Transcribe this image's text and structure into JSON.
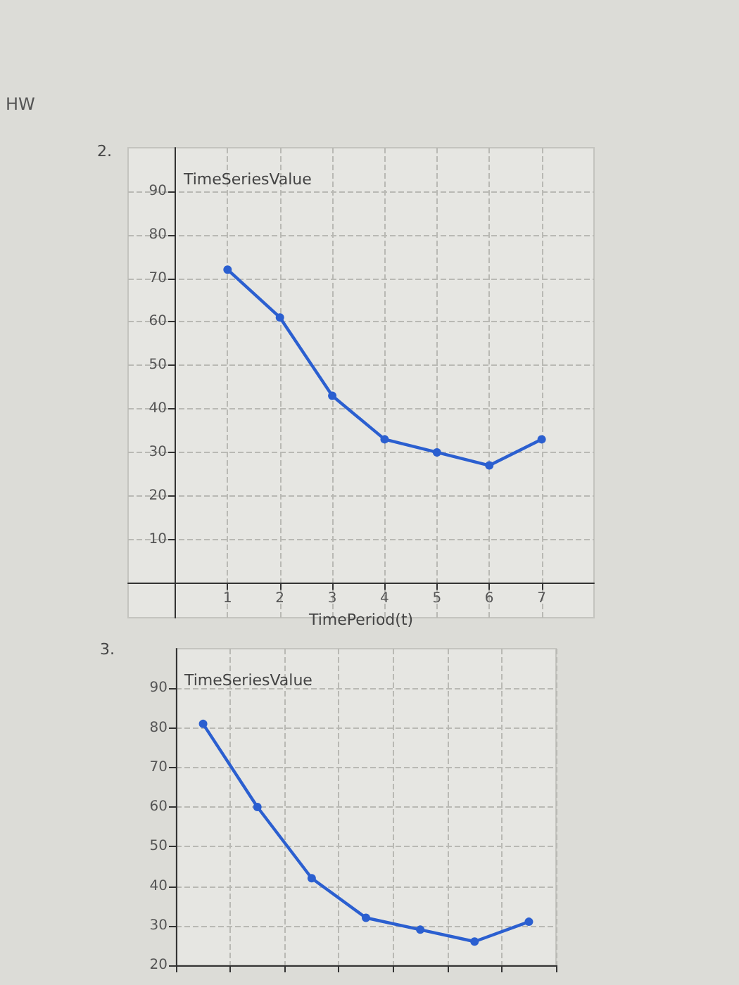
{
  "chart_data": [
    {
      "type": "line",
      "title": "2.",
      "annotations": [
        "HW"
      ],
      "xlabel": "TimePeriod(t)",
      "ylabel": "TimeSeriesValue",
      "x": [
        1,
        2,
        3,
        4,
        5,
        6,
        7
      ],
      "values": [
        72,
        61,
        43,
        33,
        30,
        27,
        33
      ],
      "color": "#2b5fd0",
      "xlim": [
        -0.9,
        8
      ],
      "ylim": [
        -8,
        100
      ],
      "xticks": [
        1,
        2,
        3,
        4,
        5,
        6,
        7
      ],
      "yticks": [
        10,
        20,
        30,
        40,
        50,
        60,
        70,
        80,
        90
      ],
      "grid": true,
      "marker": "circle"
    },
    {
      "type": "line",
      "title": "3.",
      "ylabel": "TimeSeriesValue",
      "categories": [
        null,
        null,
        null,
        null,
        null,
        null,
        null
      ],
      "values": [
        81,
        60,
        42,
        32,
        29,
        26,
        31
      ],
      "color": "#2b5fd0",
      "ylim": [
        20,
        100
      ],
      "yticks": [
        20,
        30,
        40,
        50,
        60,
        70,
        80,
        90
      ],
      "grid": true,
      "marker": "circle",
      "tick_labels": "y"
    }
  ]
}
